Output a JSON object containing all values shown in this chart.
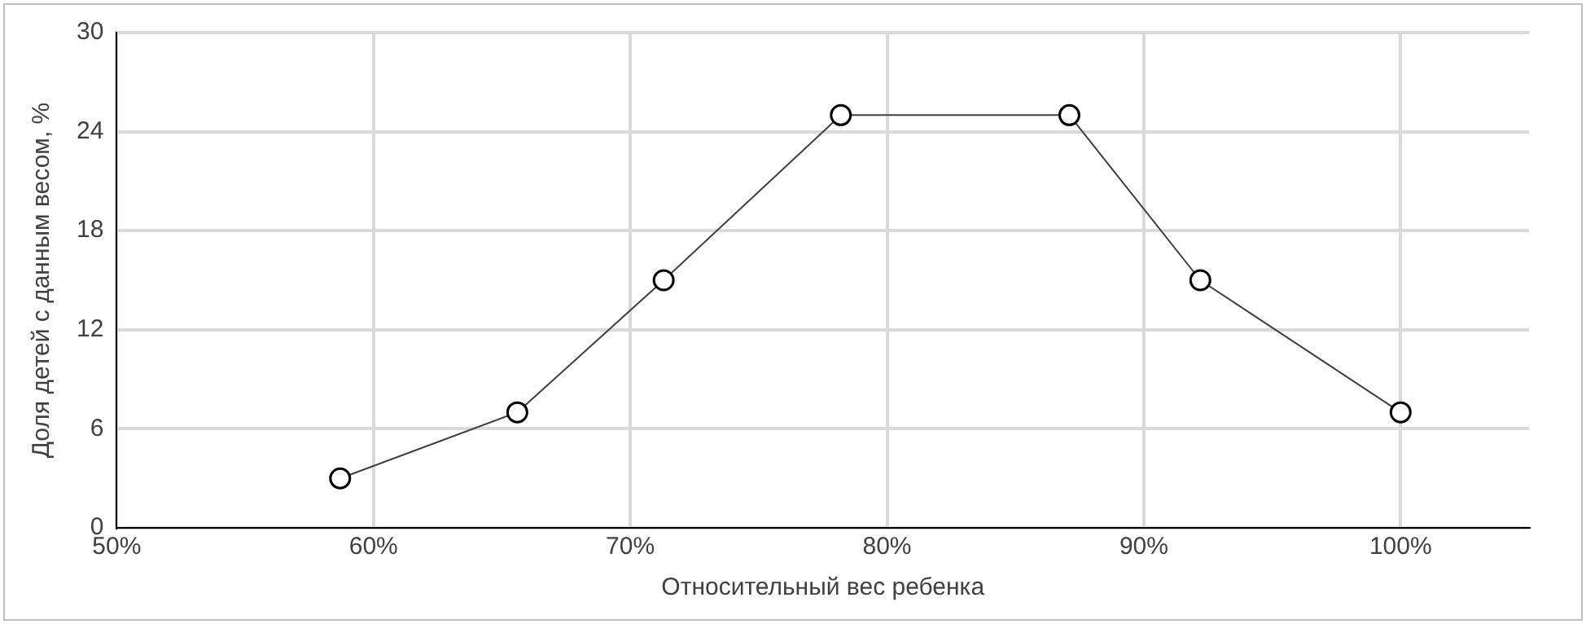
{
  "chart_data": {
    "type": "line",
    "xlabel": "Относительный вес ребенка",
    "ylabel": "Доля детей с данным весом, %",
    "x": [
      58.7,
      65.6,
      71.3,
      78.2,
      87.1,
      92.2,
      100
    ],
    "series": [
      {
        "color": "#404040",
        "values": [
          3,
          7,
          15,
          25,
          25,
          15,
          7
        ]
      }
    ],
    "xlim": [
      50,
      105
    ],
    "xticks": [
      {
        "value": 50,
        "label": "50%"
      },
      {
        "value": 60,
        "label": "60%"
      },
      {
        "value": 70,
        "label": "70%"
      },
      {
        "value": 80,
        "label": "80%"
      },
      {
        "value": 90,
        "label": "90%"
      },
      {
        "value": 100,
        "label": "100%"
      }
    ],
    "ylim": [
      0,
      30
    ],
    "yticks": [
      0,
      6,
      12,
      18,
      24,
      30
    ],
    "grid": true,
    "marker": "circle",
    "line_style": "solid",
    "legend": false
  }
}
